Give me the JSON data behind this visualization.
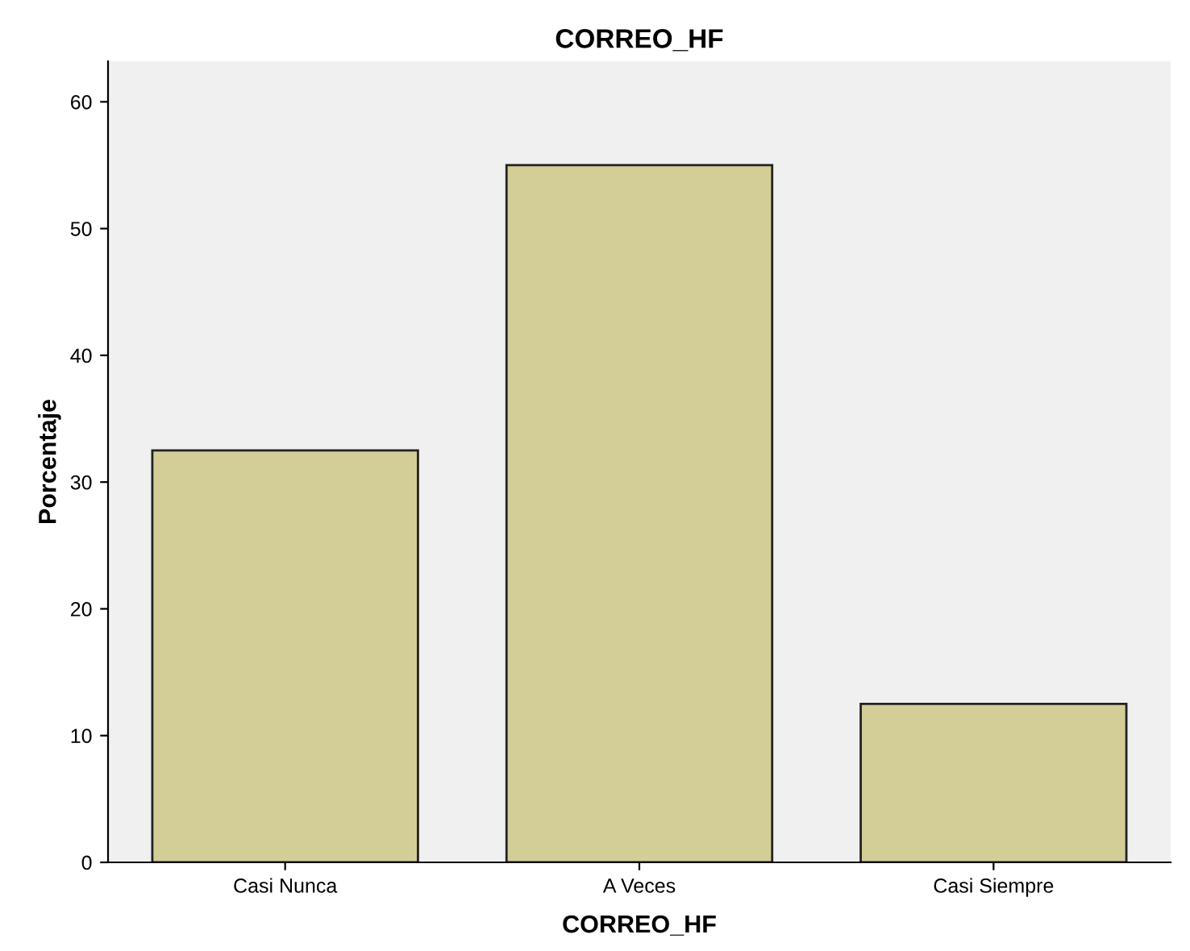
{
  "chart_data": {
    "type": "bar",
    "title": "CORREO_HF",
    "xlabel": "CORREO_HF",
    "ylabel": "Porcentaje",
    "categories": [
      "Casi Nunca",
      "A Veces",
      "Casi Siempre"
    ],
    "values": [
      32.5,
      55,
      12.5
    ],
    "color": "#d3ce97",
    "ylim": [
      0,
      63.2
    ],
    "yticks": [
      0,
      10,
      20,
      30,
      40,
      50,
      60
    ],
    "grid": false,
    "legend": false
  }
}
